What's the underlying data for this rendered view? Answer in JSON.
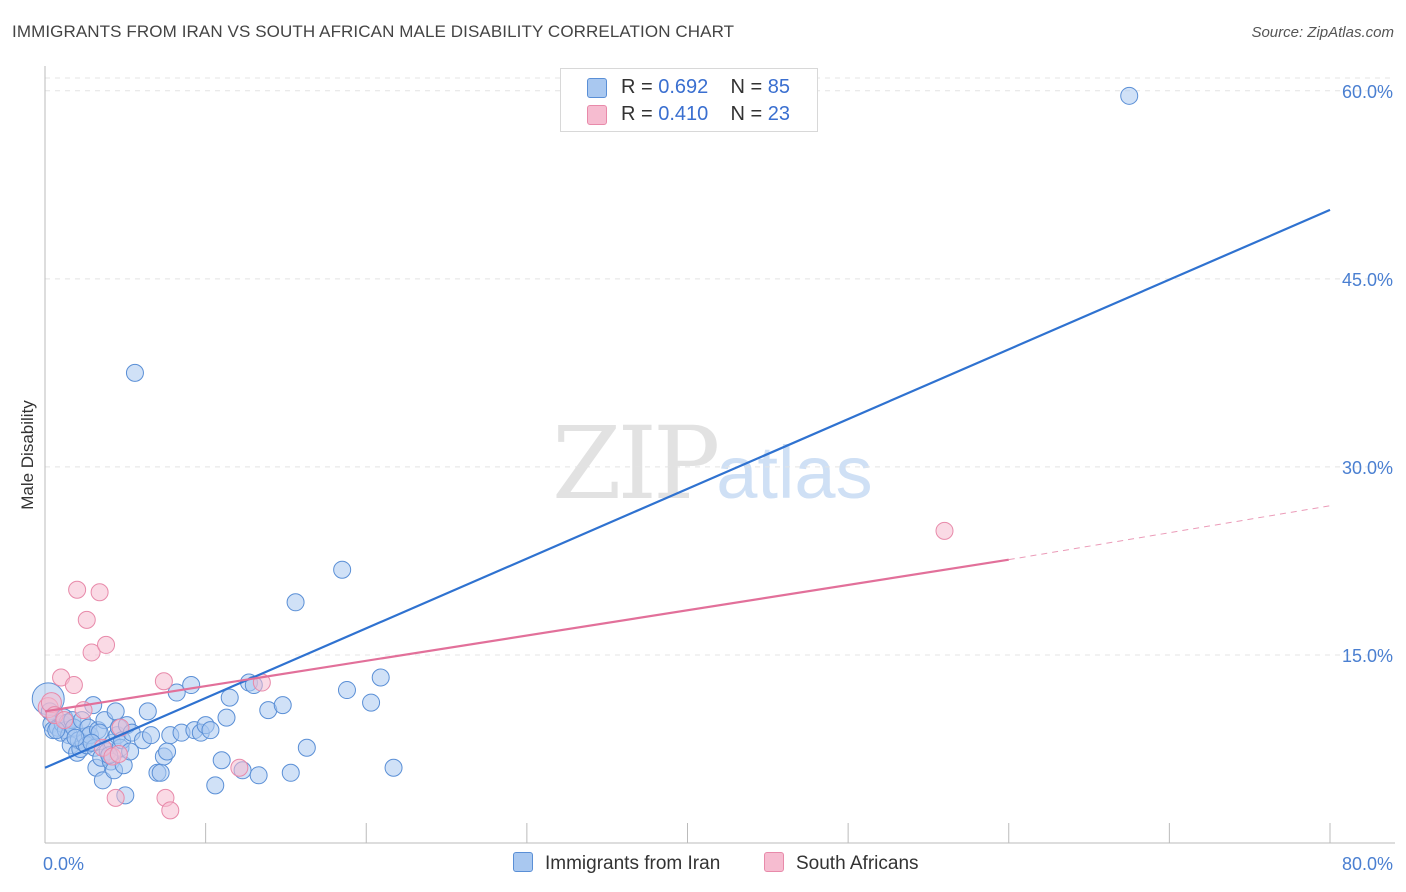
{
  "header": {
    "title": "IMMIGRANTS FROM IRAN VS SOUTH AFRICAN MALE DISABILITY CORRELATION CHART",
    "source": "Source: ZipAtlas.com"
  },
  "watermark": {
    "zip": "ZIP",
    "atlas": "atlas"
  },
  "legend": {
    "rows": [
      {
        "r_label": "R =",
        "r_value": "0.692",
        "n_label": "N =",
        "n_value": "85"
      },
      {
        "r_label": "R =",
        "r_value": "0.410",
        "n_label": "N =",
        "n_value": "23"
      }
    ]
  },
  "bottom_legend": {
    "series1": "Immigrants from Iran",
    "series2": "South Africans"
  },
  "colors": {
    "blue_fill": "#a9c8f0",
    "blue_stroke": "#5a8fd6",
    "blue_line": "#2f72d0",
    "pink_fill": "#f6bcd0",
    "pink_stroke": "#e88aaa",
    "pink_line": "#e2709a",
    "grid": "#e4e4e4",
    "axis_text": "#4a7fd1"
  },
  "chart_data": {
    "type": "scatter",
    "title": "IMMIGRANTS FROM IRAN VS SOUTH AFRICAN MALE DISABILITY CORRELATION CHART",
    "xlabel": "",
    "ylabel": "Male Disability",
    "xlim": [
      0,
      80
    ],
    "ylim": [
      0,
      61.5
    ],
    "x_tick_labels": [
      {
        "value": 0,
        "label": "0.0%"
      },
      {
        "value": 80,
        "label": "80.0%"
      }
    ],
    "y_tick_labels": [
      {
        "value": 15,
        "label": "15.0%"
      },
      {
        "value": 30,
        "label": "30.0%"
      },
      {
        "value": 45,
        "label": "45.0%"
      },
      {
        "value": 60,
        "label": "60.0%"
      }
    ],
    "grid": true,
    "legend_placement": "top-center",
    "series": [
      {
        "name": "Immigrants from Iran",
        "r": 0.692,
        "n": 85,
        "trend": {
          "x": [
            0,
            80
          ],
          "y": [
            6.0,
            50.5
          ]
        },
        "points": [
          [
            0.2,
            11.5
          ],
          [
            0.3,
            10.5
          ],
          [
            0.4,
            9.5
          ],
          [
            0.5,
            9.0
          ],
          [
            0.6,
            10.2
          ],
          [
            0.8,
            9.2
          ],
          [
            1.0,
            8.8
          ],
          [
            1.1,
            9.5
          ],
          [
            1.2,
            10.0
          ],
          [
            1.3,
            9.0
          ],
          [
            1.4,
            9.6
          ],
          [
            1.5,
            8.6
          ],
          [
            1.6,
            7.8
          ],
          [
            1.7,
            9.8
          ],
          [
            1.8,
            9.2
          ],
          [
            2.0,
            7.2
          ],
          [
            2.1,
            8.2
          ],
          [
            2.2,
            7.5
          ],
          [
            2.3,
            9.8
          ],
          [
            2.4,
            8.0
          ],
          [
            2.5,
            8.5
          ],
          [
            2.6,
            7.8
          ],
          [
            2.7,
            9.2
          ],
          [
            2.8,
            8.6
          ],
          [
            3.0,
            11.0
          ],
          [
            3.1,
            7.6
          ],
          [
            3.2,
            6.0
          ],
          [
            3.3,
            9.0
          ],
          [
            3.5,
            6.8
          ],
          [
            3.6,
            5.0
          ],
          [
            3.7,
            9.8
          ],
          [
            3.9,
            7.3
          ],
          [
            4.1,
            6.5
          ],
          [
            4.2,
            8.0
          ],
          [
            4.3,
            5.8
          ],
          [
            4.4,
            10.5
          ],
          [
            4.5,
            8.6
          ],
          [
            4.6,
            9.2
          ],
          [
            4.7,
            7.6
          ],
          [
            4.8,
            8.2
          ],
          [
            4.9,
            6.2
          ],
          [
            5.0,
            3.8
          ],
          [
            5.1,
            9.4
          ],
          [
            5.3,
            7.3
          ],
          [
            5.4,
            8.8
          ],
          [
            5.6,
            37.5
          ],
          [
            6.1,
            8.2
          ],
          [
            6.4,
            10.5
          ],
          [
            6.6,
            8.6
          ],
          [
            7.0,
            5.6
          ],
          [
            7.2,
            5.6
          ],
          [
            7.4,
            6.9
          ],
          [
            7.6,
            7.3
          ],
          [
            7.8,
            8.6
          ],
          [
            8.2,
            12.0
          ],
          [
            8.5,
            8.8
          ],
          [
            9.1,
            12.6
          ],
          [
            9.3,
            9.0
          ],
          [
            9.7,
            8.8
          ],
          [
            10.0,
            9.4
          ],
          [
            10.3,
            9.0
          ],
          [
            10.6,
            4.6
          ],
          [
            11.0,
            6.6
          ],
          [
            11.3,
            10.0
          ],
          [
            11.5,
            11.6
          ],
          [
            12.3,
            5.8
          ],
          [
            12.7,
            12.8
          ],
          [
            13.0,
            12.6
          ],
          [
            13.3,
            5.4
          ],
          [
            13.9,
            10.6
          ],
          [
            14.8,
            11.0
          ],
          [
            15.3,
            5.6
          ],
          [
            15.6,
            19.2
          ],
          [
            16.3,
            7.6
          ],
          [
            18.5,
            21.8
          ],
          [
            18.8,
            12.2
          ],
          [
            20.3,
            11.2
          ],
          [
            20.9,
            13.2
          ],
          [
            21.7,
            6.0
          ],
          [
            67.5,
            59.6
          ],
          [
            0.7,
            9.0
          ],
          [
            1.9,
            8.4
          ],
          [
            3.4,
            8.8
          ],
          [
            4.0,
            7.0
          ],
          [
            2.9,
            8.0
          ]
        ]
      },
      {
        "name": "South Africans",
        "r": 0.41,
        "n": 23,
        "trend": {
          "x": [
            0,
            60
          ],
          "y": [
            10.5,
            22.6
          ]
        },
        "trend_dashed": {
          "x": [
            60,
            80
          ],
          "y": [
            22.6,
            26.9
          ]
        },
        "points": [
          [
            0.2,
            10.8
          ],
          [
            0.4,
            11.2
          ],
          [
            0.6,
            10.2
          ],
          [
            1.0,
            13.2
          ],
          [
            1.2,
            9.8
          ],
          [
            1.8,
            12.6
          ],
          [
            2.0,
            20.2
          ],
          [
            2.4,
            10.6
          ],
          [
            2.6,
            17.8
          ],
          [
            2.9,
            15.2
          ],
          [
            3.4,
            20.0
          ],
          [
            3.8,
            15.8
          ],
          [
            3.6,
            7.6
          ],
          [
            4.2,
            6.9
          ],
          [
            4.4,
            3.6
          ],
          [
            4.6,
            7.1
          ],
          [
            4.7,
            9.2
          ],
          [
            7.4,
            12.9
          ],
          [
            7.5,
            3.6
          ],
          [
            7.8,
            2.6
          ],
          [
            12.1,
            6.0
          ],
          [
            13.5,
            12.8
          ],
          [
            56.0,
            24.9
          ]
        ]
      }
    ]
  }
}
